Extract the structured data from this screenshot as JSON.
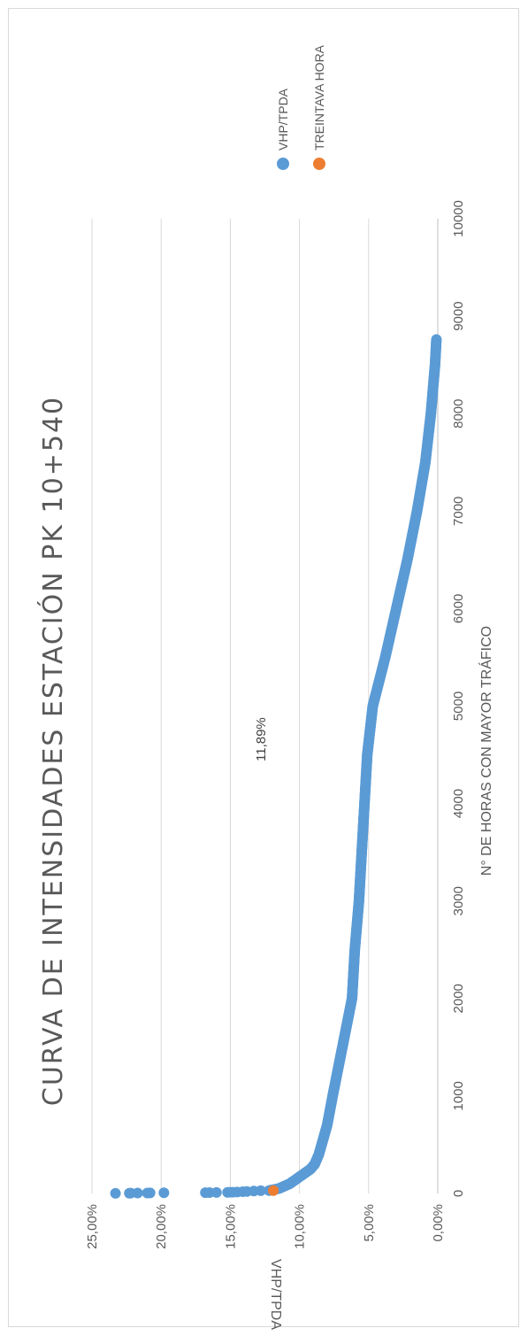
{
  "chart_data": {
    "type": "scatter",
    "title": "CURVA DE INTENSIDADES ESTACIÓN PK 10+540",
    "xlabel": "N° DE HORAS CON MAYOR TRÁFICO",
    "ylabel": "VHP/TPDA",
    "xlim": [
      0,
      10000
    ],
    "ylim": [
      0,
      25
    ],
    "x_ticks": [
      "0",
      "1000",
      "2000",
      "3000",
      "4000",
      "5000",
      "6000",
      "7000",
      "8000",
      "9000",
      "10000"
    ],
    "y_ticks": [
      "0,00%",
      "5,00%",
      "10,00%",
      "15,00%",
      "20,00%",
      "25,00%"
    ],
    "grid": "horizontal",
    "legend_position": "right",
    "colors": {
      "series1": "#5b9bd5",
      "series2": "#ed7d31",
      "grid": "#d9d9d9",
      "text": "#595959"
    },
    "series": [
      {
        "name": "VHP/TPDA",
        "outliers": [
          [
            1,
            23.3
          ],
          [
            2,
            22.3
          ],
          [
            3,
            22.2
          ],
          [
            4,
            21.7
          ],
          [
            5,
            21.0
          ],
          [
            6,
            20.8
          ],
          [
            7,
            19.8
          ],
          [
            8,
            16.8
          ],
          [
            9,
            16.5
          ],
          [
            10,
            16.0
          ],
          [
            11,
            15.2
          ],
          [
            12,
            15.0
          ],
          [
            13,
            14.8
          ],
          [
            15,
            14.5
          ],
          [
            18,
            14.1
          ],
          [
            20,
            13.8
          ],
          [
            25,
            13.3
          ],
          [
            28,
            12.8
          ]
        ],
        "curve": [
          [
            30,
            12.2
          ],
          [
            50,
            11.5
          ],
          [
            100,
            10.7
          ],
          [
            150,
            10.2
          ],
          [
            200,
            9.7
          ],
          [
            250,
            9.2
          ],
          [
            300,
            8.9
          ],
          [
            400,
            8.6
          ],
          [
            500,
            8.4
          ],
          [
            700,
            8.0
          ],
          [
            1000,
            7.6
          ],
          [
            1500,
            6.9
          ],
          [
            2000,
            6.2
          ],
          [
            2500,
            6.0
          ],
          [
            3000,
            5.7
          ],
          [
            3500,
            5.5
          ],
          [
            4000,
            5.3
          ],
          [
            4500,
            5.1
          ],
          [
            5000,
            4.7
          ],
          [
            5500,
            3.8
          ],
          [
            6000,
            3.0
          ],
          [
            6500,
            2.2
          ],
          [
            7000,
            1.5
          ],
          [
            7500,
            0.9
          ],
          [
            8000,
            0.5
          ],
          [
            8500,
            0.2
          ],
          [
            8760,
            0.1
          ]
        ]
      },
      {
        "name": "TREINTAVA HORA",
        "points": [
          [
            30,
            11.89
          ]
        ],
        "label": "11,89%"
      }
    ]
  }
}
